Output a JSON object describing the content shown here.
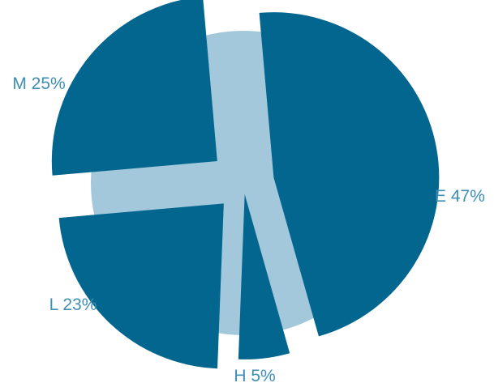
{
  "chart_data": {
    "type": "pie",
    "exploded": true,
    "backdrop_color": "#a3c8dc",
    "slice_color": "#02668f",
    "label_color": "#3d8fb5",
    "slices": [
      {
        "key": "E",
        "value": 47,
        "label": "E 47%"
      },
      {
        "key": "H",
        "value": 5,
        "label": "H 5%"
      },
      {
        "key": "L",
        "value": 23,
        "label": "L 23%"
      },
      {
        "key": "M",
        "value": 25,
        "label": "M 25%"
      }
    ]
  }
}
